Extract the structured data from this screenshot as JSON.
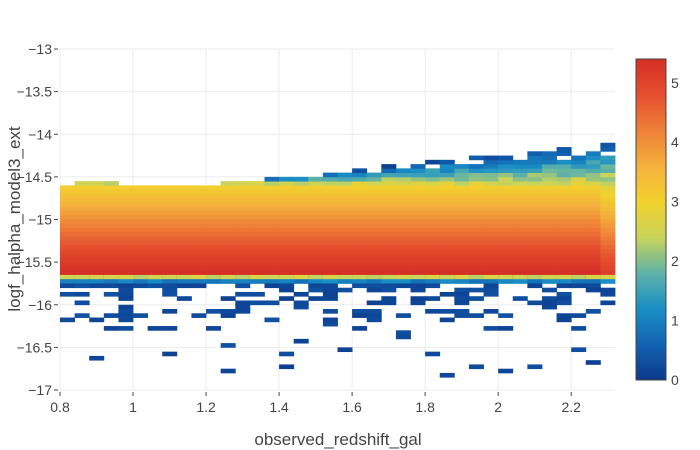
{
  "chart_data": {
    "type": "heatmap",
    "title": "",
    "xlabel": "observed_redshift_gal",
    "ylabel": "logf_halpha_model3_ext",
    "xlim": [
      0.8,
      2.32
    ],
    "ylim": [
      -17,
      -13
    ],
    "x_ticks": [
      "0.8",
      "1",
      "1.2",
      "1.4",
      "1.6",
      "1.8",
      "2",
      "2.2"
    ],
    "y_ticks": [
      "−13",
      "−13.5",
      "−14",
      "−14.5",
      "−15",
      "−15.5",
      "−16",
      "−16.5",
      "−17"
    ],
    "colorbar": {
      "range": [
        0,
        5.4
      ],
      "ticks": [
        "0",
        "1",
        "2",
        "3",
        "4",
        "5"
      ],
      "colorscale": [
        "#0d3a8c",
        "#1262b1",
        "#1a8fc5",
        "#5fb3a8",
        "#c9d45a",
        "#f2d12c",
        "#f5b13d",
        "#ef8038",
        "#e54e2e",
        "#d62f26"
      ]
    },
    "grid": true,
    "bins": {
      "x_start": 0.8,
      "x_size": 0.04,
      "y_top": -14.05,
      "y_size": 0.05
    },
    "core_band": {
      "y_from": -14.6,
      "y_to": -15.65,
      "peak_y": -15.62,
      "peak_value": 5.4,
      "low_value": 3.0
    }
  }
}
